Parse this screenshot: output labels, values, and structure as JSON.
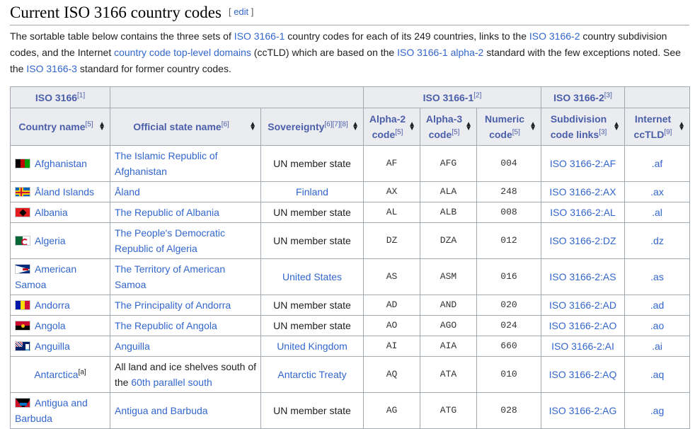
{
  "heading": {
    "title": "Current ISO 3166 country codes",
    "edit_open": "[",
    "edit_label": "edit",
    "edit_close": "]"
  },
  "intro": {
    "t1": "The sortable table below contains the three sets of ",
    "l1": "ISO 3166-1",
    "t2": " country codes for each of its 249 countries, links to the ",
    "l2": "ISO 3166-2",
    "t3": " country subdivision codes, and the Internet ",
    "l3": "country code top-level domains",
    "t4": " (ccTLD) which are based on the ",
    "l4": "ISO 3166-1 alpha-2",
    "t5": " standard with the few exceptions noted. See the ",
    "l5": "ISO 3166-3",
    "t6": " standard for former country codes."
  },
  "table": {
    "group_headers": {
      "iso3166": "ISO 3166",
      "iso3166_ref": "[1]",
      "iso3166_1": "ISO 3166-1",
      "iso3166_1_ref": "[2]",
      "iso3166_2": "ISO 3166-2",
      "iso3166_2_ref": "[3]"
    },
    "columns": {
      "country": "Country name",
      "country_ref": "[5]",
      "official": "Official state name",
      "official_ref": "[6]",
      "sovereignty": "Sovereignty",
      "sovereignty_ref": "[6][7][8]",
      "alpha2": "Alpha-2 code",
      "alpha2_ref": "[5]",
      "alpha3": "Alpha-3 code",
      "alpha3_ref": "[5]",
      "numeric": "Numeric code",
      "numeric_ref": "[5]",
      "subdivision": "Subdivision code links",
      "subdivision_ref": "[3]",
      "tld": "Internet ccTLD",
      "tld_ref": "[9]"
    },
    "sort_up": "▲",
    "sort_down": "▼",
    "rows": [
      {
        "flag": "afghanistan",
        "country": "Afghanistan",
        "country_ref": "",
        "official": "The Islamic Republic of Afghanistan",
        "official_pre": "",
        "official_link": "",
        "sovereignty": "UN member state",
        "sov_link": false,
        "alpha2": "AF",
        "alpha3": "AFG",
        "numeric": "004",
        "subdivision": "ISO 3166-2:AF",
        "tld": ".af"
      },
      {
        "flag": "aland",
        "country": "Åland Islands",
        "country_ref": "",
        "official": "Åland",
        "official_pre": "",
        "official_link": "",
        "sovereignty": "Finland",
        "sov_link": true,
        "alpha2": "AX",
        "alpha3": "ALA",
        "numeric": "248",
        "subdivision": "ISO 3166-2:AX",
        "tld": ".ax"
      },
      {
        "flag": "albania",
        "country": "Albania",
        "country_ref": "",
        "official": "The Republic of Albania",
        "official_pre": "",
        "official_link": "",
        "sovereignty": "UN member state",
        "sov_link": false,
        "alpha2": "AL",
        "alpha3": "ALB",
        "numeric": "008",
        "subdivision": "ISO 3166-2:AL",
        "tld": ".al"
      },
      {
        "flag": "algeria",
        "country": "Algeria",
        "country_ref": "",
        "official": "The People's Democratic Republic of Algeria",
        "official_pre": "",
        "official_link": "",
        "sovereignty": "UN member state",
        "sov_link": false,
        "alpha2": "DZ",
        "alpha3": "DZA",
        "numeric": "012",
        "subdivision": "ISO 3166-2:DZ",
        "tld": ".dz"
      },
      {
        "flag": "american-samoa",
        "country": "American Samoa",
        "country_ref": "",
        "official": "The Territory of American Samoa",
        "official_pre": "",
        "official_link": "",
        "sovereignty": "United States",
        "sov_link": true,
        "alpha2": "AS",
        "alpha3": "ASM",
        "numeric": "016",
        "subdivision": "ISO 3166-2:AS",
        "tld": ".as"
      },
      {
        "flag": "andorra",
        "country": "Andorra",
        "country_ref": "",
        "official": "The Principality of Andorra",
        "official_pre": "",
        "official_link": "",
        "sovereignty": "UN member state",
        "sov_link": false,
        "alpha2": "AD",
        "alpha3": "AND",
        "numeric": "020",
        "subdivision": "ISO 3166-2:AD",
        "tld": ".ad"
      },
      {
        "flag": "angola",
        "country": "Angola",
        "country_ref": "",
        "official": "The Republic of Angola",
        "official_pre": "",
        "official_link": "",
        "sovereignty": "UN member state",
        "sov_link": false,
        "alpha2": "AO",
        "alpha3": "AGO",
        "numeric": "024",
        "subdivision": "ISO 3166-2:AO",
        "tld": ".ao"
      },
      {
        "flag": "anguilla",
        "country": "Anguilla",
        "country_ref": "",
        "official": "Anguilla",
        "official_pre": "",
        "official_link": "",
        "sovereignty": "United Kingdom",
        "sov_link": true,
        "alpha2": "AI",
        "alpha3": "AIA",
        "numeric": "660",
        "subdivision": "ISO 3166-2:AI",
        "tld": ".ai"
      },
      {
        "flag": "",
        "country": "Antarctica",
        "country_ref": "[a]",
        "official": "",
        "official_pre": "All land and ice shelves south of the ",
        "official_link": "60th parallel south",
        "sovereignty": "Antarctic Treaty",
        "sov_link": true,
        "alpha2": "AQ",
        "alpha3": "ATA",
        "numeric": "010",
        "subdivision": "ISO 3166-2:AQ",
        "tld": ".aq"
      },
      {
        "flag": "antigua",
        "country": "Antigua and Barbuda",
        "country_ref": "",
        "official": "Antigua and Barbuda",
        "official_pre": "",
        "official_link": "",
        "sovereignty": "UN member state",
        "sov_link": false,
        "alpha2": "AG",
        "alpha3": "ATG",
        "numeric": "028",
        "subdivision": "ISO 3166-2:AG",
        "tld": ".ag"
      }
    ]
  }
}
